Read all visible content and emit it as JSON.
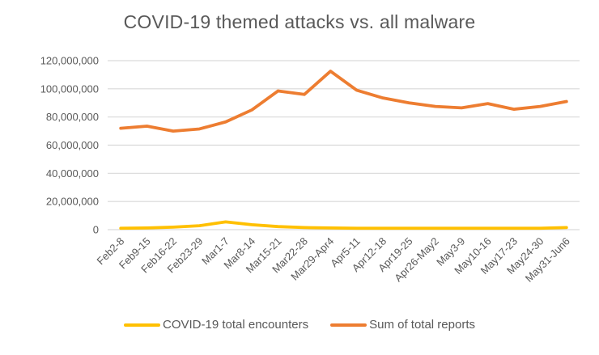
{
  "title": "COVID-19 themed attacks vs. all malware",
  "chart_data": {
    "type": "line",
    "title": "COVID-19 themed attacks vs. all malware",
    "xlabel": "",
    "ylabel": "",
    "grid": true,
    "legend_position": "bottom",
    "ylim": [
      0,
      120000000
    ],
    "yticks": [
      {
        "value": 0,
        "label": "0"
      },
      {
        "value": 20000000,
        "label": "20,000,000"
      },
      {
        "value": 40000000,
        "label": "40,000,000"
      },
      {
        "value": 60000000,
        "label": "60,000,000"
      },
      {
        "value": 80000000,
        "label": "80,000,000"
      },
      {
        "value": 100000000,
        "label": "100,000,000"
      },
      {
        "value": 120000000,
        "label": "120,000,000"
      }
    ],
    "categories": [
      "Feb2-8",
      "Feb9-15",
      "Feb16-22",
      "Feb23-29",
      "Mar1-7",
      "Mar8-14",
      "Mar15-21",
      "Mar22-28",
      "Mar29-Apr4",
      "Apr5-11",
      "Apr12-18",
      "Apr19-25",
      "Apr26-May2",
      "May3-9",
      "May10-16",
      "May17-23",
      "May24-30",
      "May31-Jun6"
    ],
    "series": [
      {
        "name": "COVID-19 total encounters",
        "color": "#FFC000",
        "values": [
          1000000,
          1200000,
          1800000,
          2800000,
          5500000,
          3500000,
          2200000,
          1500000,
          1200000,
          1000000,
          1000000,
          1000000,
          1000000,
          1000000,
          1000000,
          1000000,
          1000000,
          1500000
        ]
      },
      {
        "name": "Sum of total reports",
        "color": "#ED7D31",
        "values": [
          72000000,
          73500000,
          70000000,
          71500000,
          76500000,
          85000000,
          98500000,
          96000000,
          112500000,
          99000000,
          93500000,
          90000000,
          87500000,
          86500000,
          89500000,
          85500000,
          87500000,
          91000000
        ]
      }
    ]
  },
  "colors": {
    "title_text": "#595959",
    "axis_labels": "#595959",
    "gridline": "#D9D9D9",
    "background": "#FFFFFF"
  }
}
